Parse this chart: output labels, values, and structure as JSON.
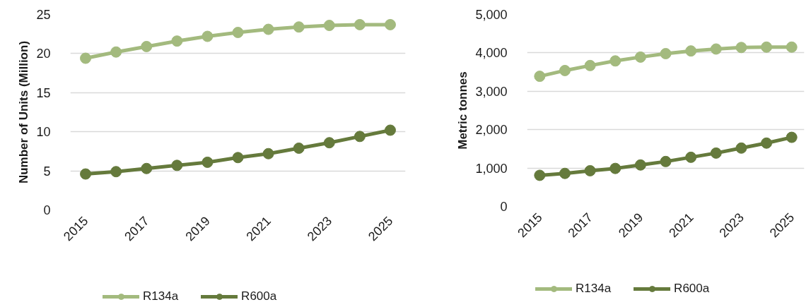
{
  "chart_data": [
    {
      "type": "line",
      "ylabel": "Number of Units (Million)",
      "x": [
        2015,
        2016,
        2017,
        2018,
        2019,
        2020,
        2021,
        2022,
        2023,
        2024,
        2025
      ],
      "xlim": [
        2014.5,
        2025.5
      ],
      "xticks": [
        2015,
        2017,
        2019,
        2021,
        2023,
        2025
      ],
      "ylim": [
        0,
        25
      ],
      "yticks": [
        0,
        5,
        10,
        15,
        20,
        25
      ],
      "grid": "y",
      "legend": "bottom",
      "marker": "circle",
      "series": [
        {
          "name": "R134a",
          "color": "#a3ba7e",
          "values": [
            19.4,
            20.2,
            20.9,
            21.6,
            22.2,
            22.7,
            23.1,
            23.4,
            23.6,
            23.7,
            23.7
          ]
        },
        {
          "name": "R600a",
          "color": "#657a3c",
          "values": [
            4.6,
            4.9,
            5.3,
            5.7,
            6.1,
            6.7,
            7.2,
            7.9,
            8.6,
            9.4,
            10.2
          ]
        }
      ]
    },
    {
      "type": "line",
      "ylabel": "Metric tonnes",
      "x": [
        2015,
        2016,
        2017,
        2018,
        2019,
        2020,
        2021,
        2022,
        2023,
        2024,
        2025
      ],
      "xlim": [
        2014.5,
        2025.5
      ],
      "xticks": [
        2015,
        2017,
        2019,
        2021,
        2023,
        2025
      ],
      "ylim": [
        0,
        5000
      ],
      "yticks": [
        {
          "value": 0,
          "label": "0"
        },
        {
          "value": 1000,
          "label": "1,000"
        },
        {
          "value": 2000,
          "label": "2,000"
        },
        {
          "value": 3000,
          "label": "3,000"
        },
        {
          "value": 4000,
          "label": "4,000"
        },
        {
          "value": 5000,
          "label": "5,000"
        }
      ],
      "grid": "y",
      "legend": "bottom",
      "marker": "circle",
      "series": [
        {
          "name": "R134a",
          "color": "#a3ba7e",
          "values": [
            3390,
            3540,
            3670,
            3790,
            3890,
            3980,
            4050,
            4100,
            4140,
            4150,
            4150
          ]
        },
        {
          "name": "R600a",
          "color": "#657a3c",
          "values": [
            810,
            860,
            930,
            990,
            1080,
            1170,
            1280,
            1390,
            1520,
            1650,
            1800
          ]
        }
      ]
    }
  ]
}
